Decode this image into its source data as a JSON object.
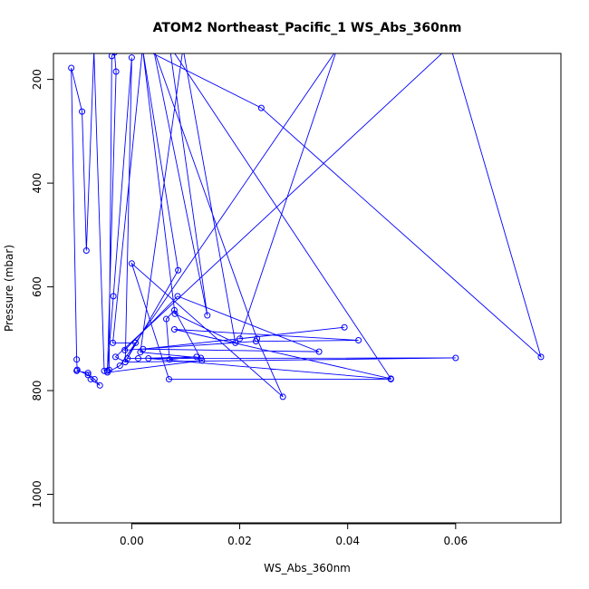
{
  "chart_data": {
    "type": "line",
    "title": "ATOM2 Northeast_Pacific_1 WS_Abs_360nm",
    "xlabel": "WS_Abs_360nm",
    "ylabel": "Pressure (mbar)",
    "xlim": [
      -0.0145,
      0.0795
    ],
    "ylim": [
      1055,
      150
    ],
    "y_reversed": true,
    "x_ticks": [
      0.0,
      0.02,
      0.04,
      0.06
    ],
    "x_tick_labels": [
      "0.00",
      "0.02",
      "0.04",
      "0.06"
    ],
    "y_ticks": [
      200,
      400,
      600,
      800,
      1000
    ],
    "y_tick_labels": [
      "200",
      "400",
      "600",
      "800",
      "1000"
    ],
    "grid": false,
    "series": [
      {
        "color": "#0000ff",
        "marker": "open-circle",
        "points": [
          [
            -0.0102,
            762
          ],
          [
            -0.0081,
            766
          ],
          [
            -0.0076,
            778
          ],
          [
            -0.0059,
            790
          ],
          [
            -0.0069,
            778
          ],
          [
            -0.0081,
            770
          ],
          [
            -0.0101,
            760
          ],
          [
            -0.0102,
            740
          ],
          [
            -0.0112,
            178
          ],
          [
            -0.0092,
            262
          ],
          [
            -0.0084,
            530
          ],
          [
            -0.007,
            145
          ],
          [
            -0.0051,
            762
          ],
          [
            -0.0042,
            760
          ],
          [
            -0.0037,
            155
          ],
          [
            -0.0032,
            148
          ],
          [
            -0.0029,
            185
          ],
          [
            -0.0045,
            762
          ],
          [
            -0.0034,
            618
          ],
          [
            0.0,
            158
          ],
          [
            -0.0012,
            745
          ],
          [
            0.0007,
            708
          ],
          [
            -0.0035,
            708
          ],
          [
            0.002,
            140
          ],
          [
            0.0086,
            568
          ],
          [
            -0.0008,
            738
          ],
          [
            0.0012,
            738
          ],
          [
            0.012,
            735
          ],
          [
            0.007,
            740
          ],
          [
            0.0064,
            662
          ],
          [
            0.0079,
            645
          ],
          [
            0.013,
            742
          ],
          [
            -0.0045,
            765
          ],
          [
            -0.0022,
            752
          ],
          [
            0.038,
            142
          ],
          [
            0.02,
            700
          ],
          [
            0.0394,
            678
          ],
          [
            0.0021,
            720
          ],
          [
            0.0347,
            725
          ],
          [
            0.0085,
            618
          ],
          [
            -0.0013,
            722
          ],
          [
            0.023,
            705
          ],
          [
            0.042,
            703
          ],
          [
            0.0079,
            682
          ],
          [
            0.048,
            777
          ],
          [
            0.007,
            135
          ],
          [
            0.014,
            655
          ],
          [
            0.004,
            140
          ],
          [
            0.0232,
            700
          ],
          [
            0.028,
            812
          ],
          [
            0.0,
            555
          ],
          [
            0.0069,
            778
          ],
          [
            0.048,
            778
          ],
          [
            0.0031,
            738
          ],
          [
            0.06,
            737
          ],
          [
            -0.0012,
            745
          ],
          [
            -0.003,
            735
          ],
          [
            0.059,
            135
          ],
          [
            0.0758,
            735
          ],
          [
            0.024,
            255
          ],
          [
            0.002,
            140
          ],
          [
            0.008,
            652
          ],
          [
            0.0192,
            708
          ],
          [
            0.0095,
            140
          ],
          [
            0.0016,
            726
          ],
          [
            0.0128,
            737
          ]
        ]
      }
    ]
  }
}
